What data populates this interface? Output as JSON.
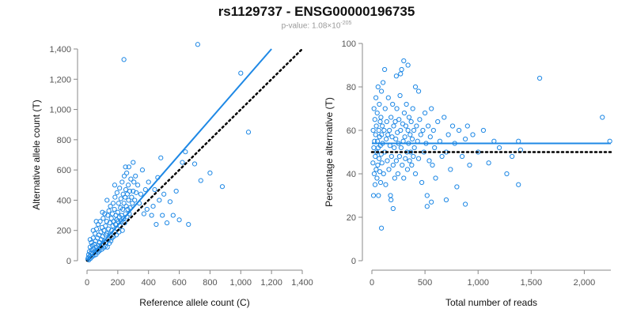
{
  "header": {
    "title": "rs1129737 - ENSG00000196735",
    "pvalue_prefix": "p-value: 1.08×10",
    "pvalue_exponent": "-205"
  },
  "colors": {
    "series": "#1e88e5",
    "reference": "#000000",
    "axis": "#888888"
  },
  "chart_data": [
    {
      "type": "scatter",
      "xlabel": "Reference allele count (C)",
      "ylabel": "Alternative allele count (T)",
      "xlim": [
        0,
        1400
      ],
      "ylim": [
        0,
        1400
      ],
      "xticks": [
        0,
        200,
        400,
        600,
        800,
        1000,
        1200,
        1400
      ],
      "xtick_labels": [
        "0",
        "200",
        "400",
        "600",
        "800",
        "1,000",
        "1,200",
        "1,400"
      ],
      "yticks": [
        0,
        200,
        400,
        600,
        800,
        1000,
        1200,
        1400
      ],
      "ytick_labels": [
        "0",
        "200",
        "400",
        "600",
        "800",
        "1,000",
        "1,200",
        "1,400"
      ],
      "fit_line": {
        "x": [
          0,
          1200
        ],
        "y": [
          0,
          1400
        ]
      },
      "reference_line": {
        "x": [
          0,
          1400
        ],
        "y": [
          0,
          1400
        ]
      },
      "points": [
        [
          5,
          10
        ],
        [
          8,
          20
        ],
        [
          10,
          40
        ],
        [
          12,
          5
        ],
        [
          15,
          60
        ],
        [
          18,
          30
        ],
        [
          20,
          90
        ],
        [
          22,
          15
        ],
        [
          25,
          50
        ],
        [
          28,
          120
        ],
        [
          30,
          70
        ],
        [
          32,
          25
        ],
        [
          35,
          100
        ],
        [
          38,
          45
        ],
        [
          40,
          150
        ],
        [
          42,
          80
        ],
        [
          45,
          35
        ],
        [
          48,
          110
        ],
        [
          50,
          60
        ],
        [
          52,
          180
        ],
        [
          55,
          130
        ],
        [
          58,
          40
        ],
        [
          60,
          90
        ],
        [
          62,
          210
        ],
        [
          65,
          70
        ],
        [
          68,
          150
        ],
        [
          70,
          55
        ],
        [
          72,
          240
        ],
        [
          75,
          100
        ],
        [
          78,
          170
        ],
        [
          80,
          65
        ],
        [
          82,
          120
        ],
        [
          85,
          260
        ],
        [
          88,
          90
        ],
        [
          90,
          190
        ],
        [
          92,
          140
        ],
        [
          95,
          75
        ],
        [
          98,
          220
        ],
        [
          100,
          110
        ],
        [
          102,
          160
        ],
        [
          105,
          280
        ],
        [
          108,
          85
        ],
        [
          110,
          200
        ],
        [
          112,
          130
        ],
        [
          115,
          310
        ],
        [
          118,
          95
        ],
        [
          120,
          230
        ],
        [
          122,
          170
        ],
        [
          125,
          120
        ],
        [
          128,
          260
        ],
        [
          130,
          180
        ],
        [
          132,
          90
        ],
        [
          135,
          300
        ],
        [
          138,
          140
        ],
        [
          140,
          210
        ],
        [
          142,
          330
        ],
        [
          145,
          115
        ],
        [
          148,
          250
        ],
        [
          150,
          175
        ],
        [
          152,
          360
        ],
        [
          155,
          130
        ],
        [
          158,
          280
        ],
        [
          160,
          200
        ],
        [
          162,
          150
        ],
        [
          165,
          310
        ],
        [
          168,
          230
        ],
        [
          170,
          380
        ],
        [
          172,
          160
        ],
        [
          175,
          260
        ],
        [
          178,
          340
        ],
        [
          180,
          190
        ],
        [
          182,
          420
        ],
        [
          185,
          240
        ],
        [
          188,
          300
        ],
        [
          190,
          170
        ],
        [
          192,
          270
        ],
        [
          195,
          450
        ],
        [
          198,
          210
        ],
        [
          200,
          320
        ],
        [
          202,
          260
        ],
        [
          205,
          380
        ],
        [
          208,
          190
        ],
        [
          210,
          290
        ],
        [
          212,
          480
        ],
        [
          215,
          230
        ],
        [
          218,
          350
        ],
        [
          220,
          410
        ],
        [
          222,
          260
        ],
        [
          225,
          300
        ],
        [
          228,
          520
        ],
        [
          230,
          200
        ],
        [
          232,
          340
        ],
        [
          235,
          440
        ],
        [
          238,
          280
        ],
        [
          240,
          380
        ],
        [
          242,
          560
        ],
        [
          245,
          250
        ],
        [
          248,
          420
        ],
        [
          250,
          310
        ],
        [
          252,
          470
        ],
        [
          255,
          360
        ],
        [
          258,
          580
        ],
        [
          260,
          290
        ],
        [
          262,
          440
        ],
        [
          265,
          340
        ],
        [
          268,
          500
        ],
        [
          270,
          400
        ],
        [
          272,
          620
        ],
        [
          275,
          310
        ],
        [
          278,
          460
        ],
        [
          280,
          350
        ],
        [
          285,
          540
        ],
        [
          290,
          420
        ],
        [
          295,
          380
        ],
        [
          300,
          460
        ],
        [
          305,
          520
        ],
        [
          310,
          400
        ],
        [
          315,
          560
        ],
        [
          320,
          450
        ],
        [
          330,
          500
        ],
        [
          240,
          1330
        ],
        [
          340,
          380
        ],
        [
          350,
          440
        ],
        [
          360,
          600
        ],
        [
          370,
          310
        ],
        [
          380,
          470
        ],
        [
          390,
          340
        ],
        [
          400,
          520
        ],
        [
          420,
          300
        ],
        [
          430,
          360
        ],
        [
          440,
          470
        ],
        [
          450,
          240
        ],
        [
          460,
          550
        ],
        [
          470,
          400
        ],
        [
          480,
          680
        ],
        [
          490,
          300
        ],
        [
          500,
          440
        ],
        [
          520,
          250
        ],
        [
          540,
          390
        ],
        [
          560,
          300
        ],
        [
          580,
          460
        ],
        [
          600,
          270
        ],
        [
          620,
          650
        ],
        [
          640,
          720
        ],
        [
          660,
          240
        ],
        [
          700,
          640
        ],
        [
          720,
          1430
        ],
        [
          740,
          530
        ],
        [
          800,
          580
        ],
        [
          880,
          490
        ],
        [
          1000,
          1240
        ],
        [
          1050,
          850
        ],
        [
          300,
          650
        ],
        [
          250,
          620
        ],
        [
          180,
          500
        ],
        [
          130,
          400
        ],
        [
          100,
          320
        ],
        [
          60,
          260
        ],
        [
          40,
          200
        ],
        [
          20,
          140
        ]
      ]
    },
    {
      "type": "scatter",
      "xlabel": "Total number of reads",
      "ylabel": "Percentage alternative (T)",
      "xlim": [
        0,
        2250
      ],
      "ylim": [
        0,
        100
      ],
      "xticks": [
        0,
        500,
        1000,
        1500,
        2000
      ],
      "xtick_labels": [
        "0",
        "500",
        "1,000",
        "1,500",
        "2,000"
      ],
      "yticks": [
        0,
        20,
        40,
        60,
        80,
        100
      ],
      "ytick_labels": [
        "0",
        "20",
        "40",
        "60",
        "80",
        "100"
      ],
      "fit_line": {
        "x": [
          0,
          2250
        ],
        "y": [
          54,
          54
        ]
      },
      "reference_line": {
        "x": [
          0,
          2250
        ],
        "y": [
          50,
          50
        ]
      },
      "points": [
        [
          10,
          45
        ],
        [
          12,
          60
        ],
        [
          15,
          30
        ],
        [
          18,
          52
        ],
        [
          20,
          70
        ],
        [
          22,
          40
        ],
        [
          25,
          55
        ],
        [
          28,
          65
        ],
        [
          30,
          35
        ],
        [
          32,
          48
        ],
        [
          35,
          58
        ],
        [
          38,
          75
        ],
        [
          40,
          42
        ],
        [
          42,
          62
        ],
        [
          45,
          50
        ],
        [
          48,
          38
        ],
        [
          50,
          68
        ],
        [
          52,
          55
        ],
        [
          55,
          44
        ],
        [
          58,
          80
        ],
        [
          60,
          52
        ],
        [
          62,
          30
        ],
        [
          65,
          60
        ],
        [
          68,
          47
        ],
        [
          70,
          72
        ],
        [
          72,
          57
        ],
        [
          75,
          41
        ],
        [
          78,
          64
        ],
        [
          80,
          53
        ],
        [
          82,
          36
        ],
        [
          85,
          66
        ],
        [
          88,
          49
        ],
        [
          90,
          78
        ],
        [
          92,
          58
        ],
        [
          95,
          45
        ],
        [
          98,
          62
        ],
        [
          100,
          54
        ],
        [
          105,
          82
        ],
        [
          110,
          40
        ],
        [
          115,
          60
        ],
        [
          120,
          50
        ],
        [
          125,
          70
        ],
        [
          130,
          35
        ],
        [
          135,
          56
        ],
        [
          140,
          64
        ],
        [
          145,
          46
        ],
        [
          150,
          58
        ],
        [
          155,
          75
        ],
        [
          160,
          42
        ],
        [
          165,
          60
        ],
        [
          170,
          53
        ],
        [
          175,
          30
        ],
        [
          180,
          66
        ],
        [
          185,
          48
        ],
        [
          190,
          57
        ],
        [
          195,
          72
        ],
        [
          200,
          44
        ],
        [
          205,
          62
        ],
        [
          210,
          52
        ],
        [
          215,
          38
        ],
        [
          220,
          64
        ],
        [
          225,
          56
        ],
        [
          230,
          46
        ],
        [
          235,
          70
        ],
        [
          240,
          59
        ],
        [
          245,
          40
        ],
        [
          250,
          54
        ],
        [
          255,
          65
        ],
        [
          260,
          48
        ],
        [
          265,
          76
        ],
        [
          270,
          60
        ],
        [
          275,
          52
        ],
        [
          280,
          88
        ],
        [
          285,
          44
        ],
        [
          290,
          63
        ],
        [
          295,
          55
        ],
        [
          300,
          38
        ],
        [
          305,
          68
        ],
        [
          310,
          57
        ],
        [
          315,
          47
        ],
        [
          320,
          62
        ],
        [
          325,
          72
        ],
        [
          330,
          50
        ],
        [
          335,
          42
        ],
        [
          340,
          60
        ],
        [
          345,
          54
        ],
        [
          350,
          66
        ],
        [
          355,
          46
        ],
        [
          360,
          58
        ],
        [
          365,
          50
        ],
        [
          370,
          64
        ],
        [
          375,
          44
        ],
        [
          380,
          56
        ],
        [
          385,
          70
        ],
        [
          390,
          48
        ],
        [
          395,
          60
        ],
        [
          400,
          52
        ],
        [
          410,
          40
        ],
        [
          420,
          62
        ],
        [
          430,
          55
        ],
        [
          440,
          47
        ],
        [
          450,
          65
        ],
        [
          460,
          58
        ],
        [
          470,
          36
        ],
        [
          480,
          60
        ],
        [
          490,
          50
        ],
        [
          500,
          68
        ],
        [
          510,
          54
        ],
        [
          520,
          30
        ],
        [
          530,
          62
        ],
        [
          540,
          46
        ],
        [
          550,
          57
        ],
        [
          560,
          70
        ],
        [
          570,
          44
        ],
        [
          580,
          60
        ],
        [
          590,
          52
        ],
        [
          600,
          38
        ],
        [
          620,
          64
        ],
        [
          640,
          55
        ],
        [
          660,
          48
        ],
        [
          680,
          66
        ],
        [
          700,
          50
        ],
        [
          720,
          58
        ],
        [
          740,
          42
        ],
        [
          760,
          62
        ],
        [
          780,
          54
        ],
        [
          800,
          34
        ],
        [
          820,
          60
        ],
        [
          850,
          48
        ],
        [
          880,
          56
        ],
        [
          900,
          62
        ],
        [
          920,
          44
        ],
        [
          950,
          58
        ],
        [
          1000,
          50
        ],
        [
          1050,
          60
        ],
        [
          1100,
          45
        ],
        [
          1150,
          55
        ],
        [
          1200,
          52
        ],
        [
          1270,
          40
        ],
        [
          1320,
          48
        ],
        [
          1380,
          55
        ],
        [
          1380,
          35
        ],
        [
          1400,
          51
        ],
        [
          1580,
          84
        ],
        [
          2170,
          66
        ],
        [
          2240,
          55
        ],
        [
          300,
          92
        ],
        [
          340,
          90
        ],
        [
          230,
          85
        ],
        [
          120,
          88
        ],
        [
          90,
          15
        ],
        [
          200,
          24
        ],
        [
          180,
          28
        ],
        [
          520,
          25
        ],
        [
          560,
          27
        ],
        [
          700,
          28
        ],
        [
          880,
          26
        ],
        [
          410,
          80
        ],
        [
          440,
          78
        ],
        [
          270,
          86
        ]
      ]
    }
  ]
}
